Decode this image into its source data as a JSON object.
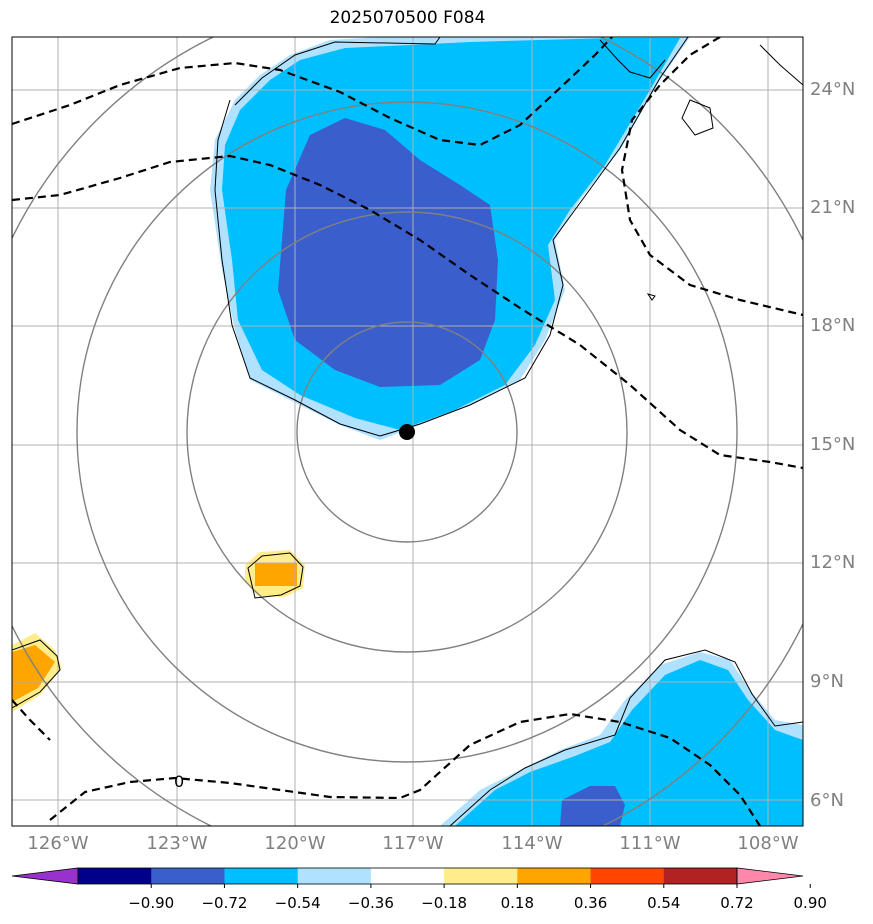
{
  "title": "2025070500 F084",
  "lat_labels": [
    "24°N",
    "21°N",
    "18°N",
    "15°N",
    "12°N",
    "9°N",
    "6°N"
  ],
  "lon_labels": [
    "126°W",
    "123°W",
    "120°W",
    "117°W",
    "114°W",
    "111°W",
    "108°W"
  ],
  "contour_label": "0",
  "colorbar": {
    "ticks": [
      "−0.90",
      "−0.72",
      "−0.54",
      "−0.36",
      "−0.18",
      "0.18",
      "0.36",
      "0.54",
      "0.72",
      "0.90"
    ],
    "colors": [
      "#9932CC",
      "#00008B",
      "#3A5FCD",
      "#00BFFF",
      "#B0E2FF",
      "#FFFFFF",
      "#FFEC8B",
      "#FFA500",
      "#FF4500",
      "#B22222",
      "#FF88AA"
    ]
  },
  "center_marker": {
    "lon": -117.0,
    "lat": 15.3
  }
}
